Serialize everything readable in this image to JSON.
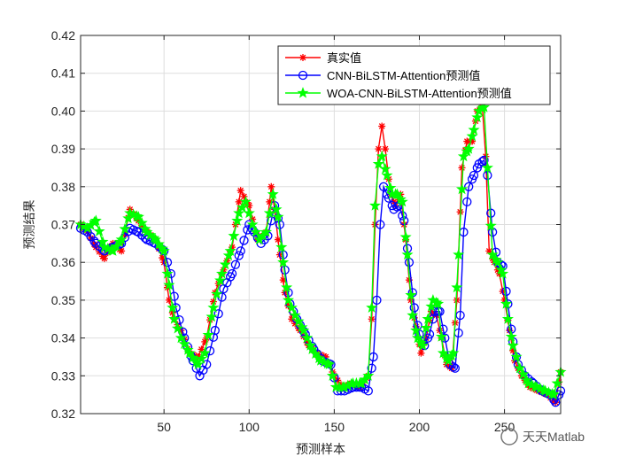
{
  "chart_data": {
    "type": "line",
    "xlabel": "预测样本",
    "ylabel": "预测结果",
    "xlim": [
      1,
      283
    ],
    "ylim": [
      0.32,
      0.42
    ],
    "xticks": [
      50,
      100,
      150,
      200,
      250
    ],
    "yticks": [
      0.32,
      0.33,
      0.34,
      0.35,
      0.36,
      0.37,
      0.38,
      0.39,
      0.4,
      0.41,
      0.42
    ],
    "grid": true,
    "legend_position": "top-right",
    "series": [
      {
        "name": "真实值",
        "color": "#ff0000",
        "marker": "asterisk",
        "points": [
          [
            1,
            0.37
          ],
          [
            5,
            0.368
          ],
          [
            10,
            0.364
          ],
          [
            15,
            0.361
          ],
          [
            20,
            0.365
          ],
          [
            25,
            0.363
          ],
          [
            30,
            0.374
          ],
          [
            35,
            0.371
          ],
          [
            40,
            0.368
          ],
          [
            45,
            0.366
          ],
          [
            50,
            0.36
          ],
          [
            53,
            0.35
          ],
          [
            56,
            0.345
          ],
          [
            60,
            0.342
          ],
          [
            65,
            0.336
          ],
          [
            70,
            0.335
          ],
          [
            75,
            0.34
          ],
          [
            80,
            0.352
          ],
          [
            85,
            0.358
          ],
          [
            90,
            0.364
          ],
          [
            95,
            0.379
          ],
          [
            100,
            0.375
          ],
          [
            105,
            0.366
          ],
          [
            110,
            0.368
          ],
          [
            113,
            0.38
          ],
          [
            115,
            0.374
          ],
          [
            118,
            0.362
          ],
          [
            121,
            0.352
          ],
          [
            125,
            0.345
          ],
          [
            130,
            0.342
          ],
          [
            135,
            0.338
          ],
          [
            140,
            0.336
          ],
          [
            145,
            0.335
          ],
          [
            150,
            0.33
          ],
          [
            155,
            0.327
          ],
          [
            160,
            0.328
          ],
          [
            165,
            0.327
          ],
          [
            170,
            0.33
          ],
          [
            172,
            0.345
          ],
          [
            174,
            0.37
          ],
          [
            176,
            0.39
          ],
          [
            178,
            0.396
          ],
          [
            180,
            0.39
          ],
          [
            183,
            0.378
          ],
          [
            186,
            0.375
          ],
          [
            189,
            0.378
          ],
          [
            192,
            0.366
          ],
          [
            195,
            0.35
          ],
          [
            198,
            0.343
          ],
          [
            201,
            0.336
          ],
          [
            204,
            0.34
          ],
          [
            207,
            0.347
          ],
          [
            210,
            0.346
          ],
          [
            213,
            0.34
          ],
          [
            216,
            0.333
          ],
          [
            219,
            0.332
          ],
          [
            222,
            0.35
          ],
          [
            225,
            0.385
          ],
          [
            228,
            0.392
          ],
          [
            231,
            0.392
          ],
          [
            234,
            0.4
          ],
          [
            237,
            0.401
          ],
          [
            239,
            0.388
          ],
          [
            241,
            0.363
          ],
          [
            244,
            0.36
          ],
          [
            247,
            0.357
          ],
          [
            250,
            0.35
          ],
          [
            253,
            0.342
          ],
          [
            256,
            0.334
          ],
          [
            260,
            0.33
          ],
          [
            265,
            0.327
          ],
          [
            270,
            0.326
          ],
          [
            275,
            0.325
          ],
          [
            280,
            0.323
          ],
          [
            283,
            0.331
          ]
        ]
      },
      {
        "name": "CNN-BiLSTM-Attention预测值",
        "color": "#0000ff",
        "marker": "circle",
        "points": [
          [
            1,
            0.369
          ],
          [
            5,
            0.368
          ],
          [
            10,
            0.365
          ],
          [
            15,
            0.363
          ],
          [
            20,
            0.364
          ],
          [
            25,
            0.365
          ],
          [
            30,
            0.369
          ],
          [
            35,
            0.368
          ],
          [
            40,
            0.366
          ],
          [
            45,
            0.365
          ],
          [
            50,
            0.363
          ],
          [
            54,
            0.357
          ],
          [
            57,
            0.348
          ],
          [
            62,
            0.34
          ],
          [
            67,
            0.334
          ],
          [
            71,
            0.33
          ],
          [
            75,
            0.333
          ],
          [
            80,
            0.342
          ],
          [
            85,
            0.353
          ],
          [
            90,
            0.357
          ],
          [
            95,
            0.363
          ],
          [
            100,
            0.37
          ],
          [
            103,
            0.368
          ],
          [
            107,
            0.365
          ],
          [
            111,
            0.367
          ],
          [
            115,
            0.375
          ],
          [
            118,
            0.37
          ],
          [
            121,
            0.358
          ],
          [
            124,
            0.349
          ],
          [
            128,
            0.345
          ],
          [
            133,
            0.341
          ],
          [
            138,
            0.337
          ],
          [
            143,
            0.334
          ],
          [
            148,
            0.333
          ],
          [
            152,
            0.326
          ],
          [
            156,
            0.326
          ],
          [
            161,
            0.327
          ],
          [
            166,
            0.327
          ],
          [
            170,
            0.326
          ],
          [
            173,
            0.335
          ],
          [
            175,
            0.35
          ],
          [
            177,
            0.37
          ],
          [
            179,
            0.38
          ],
          [
            182,
            0.377
          ],
          [
            185,
            0.374
          ],
          [
            188,
            0.375
          ],
          [
            191,
            0.371
          ],
          [
            194,
            0.36
          ],
          [
            197,
            0.348
          ],
          [
            200,
            0.341
          ],
          [
            203,
            0.338
          ],
          [
            206,
            0.341
          ],
          [
            209,
            0.347
          ],
          [
            212,
            0.347
          ],
          [
            215,
            0.34
          ],
          [
            218,
            0.333
          ],
          [
            221,
            0.332
          ],
          [
            224,
            0.346
          ],
          [
            226,
            0.368
          ],
          [
            229,
            0.38
          ],
          [
            232,
            0.383
          ],
          [
            235,
            0.386
          ],
          [
            238,
            0.387
          ],
          [
            240,
            0.383
          ],
          [
            243,
            0.368
          ],
          [
            246,
            0.36
          ],
          [
            249,
            0.359
          ],
          [
            252,
            0.349
          ],
          [
            255,
            0.339
          ],
          [
            258,
            0.333
          ],
          [
            262,
            0.33
          ],
          [
            267,
            0.328
          ],
          [
            272,
            0.326
          ],
          [
            277,
            0.325
          ],
          [
            280,
            0.323
          ],
          [
            283,
            0.326
          ]
        ]
      },
      {
        "name": "WOA-CNN-BiLSTM-Attention预测值",
        "color": "#00ff00",
        "marker": "star",
        "points": [
          [
            1,
            0.37
          ],
          [
            5,
            0.369
          ],
          [
            10,
            0.371
          ],
          [
            15,
            0.364
          ],
          [
            20,
            0.363
          ],
          [
            25,
            0.366
          ],
          [
            30,
            0.373
          ],
          [
            35,
            0.372
          ],
          [
            40,
            0.368
          ],
          [
            45,
            0.366
          ],
          [
            50,
            0.363
          ],
          [
            53,
            0.354
          ],
          [
            56,
            0.345
          ],
          [
            60,
            0.34
          ],
          [
            65,
            0.336
          ],
          [
            70,
            0.333
          ],
          [
            74,
            0.336
          ],
          [
            79,
            0.348
          ],
          [
            84,
            0.357
          ],
          [
            89,
            0.363
          ],
          [
            94,
            0.373
          ],
          [
            98,
            0.376
          ],
          [
            102,
            0.37
          ],
          [
            106,
            0.366
          ],
          [
            110,
            0.368
          ],
          [
            114,
            0.378
          ],
          [
            117,
            0.372
          ],
          [
            120,
            0.36
          ],
          [
            123,
            0.35
          ],
          [
            127,
            0.346
          ],
          [
            132,
            0.342
          ],
          [
            137,
            0.337
          ],
          [
            142,
            0.334
          ],
          [
            147,
            0.333
          ],
          [
            151,
            0.327
          ],
          [
            156,
            0.327
          ],
          [
            161,
            0.328
          ],
          [
            166,
            0.328
          ],
          [
            170,
            0.33
          ],
          [
            172,
            0.348
          ],
          [
            174,
            0.375
          ],
          [
            176,
            0.386
          ],
          [
            178,
            0.388
          ],
          [
            181,
            0.383
          ],
          [
            184,
            0.378
          ],
          [
            187,
            0.378
          ],
          [
            190,
            0.376
          ],
          [
            193,
            0.362
          ],
          [
            196,
            0.346
          ],
          [
            199,
            0.34
          ],
          [
            202,
            0.338
          ],
          [
            205,
            0.345
          ],
          [
            208,
            0.35
          ],
          [
            211,
            0.349
          ],
          [
            214,
            0.336
          ],
          [
            217,
            0.334
          ],
          [
            220,
            0.336
          ],
          [
            223,
            0.362
          ],
          [
            226,
            0.388
          ],
          [
            229,
            0.39
          ],
          [
            232,
            0.395
          ],
          [
            235,
            0.4
          ],
          [
            238,
            0.401
          ],
          [
            240,
            0.385
          ],
          [
            243,
            0.362
          ],
          [
            246,
            0.36
          ],
          [
            249,
            0.357
          ],
          [
            252,
            0.345
          ],
          [
            255,
            0.338
          ],
          [
            259,
            0.332
          ],
          [
            264,
            0.328
          ],
          [
            269,
            0.327
          ],
          [
            274,
            0.326
          ],
          [
            279,
            0.325
          ],
          [
            283,
            0.331
          ]
        ]
      }
    ]
  },
  "watermark": "天天Matlab"
}
